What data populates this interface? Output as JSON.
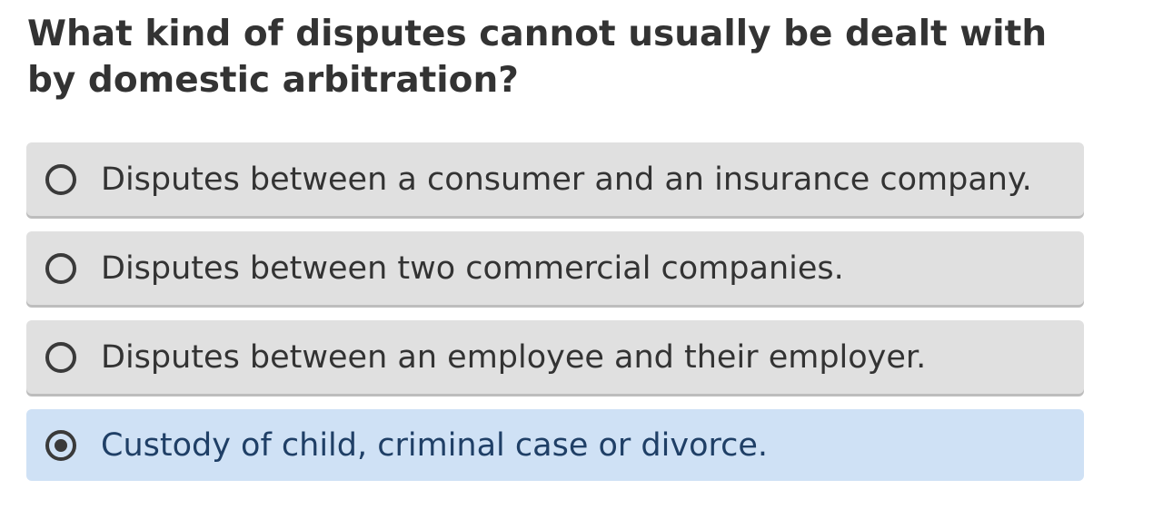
{
  "question": {
    "text": "What kind of disputes cannot usually be dealt with by domestic arbitration?"
  },
  "options": [
    {
      "label": "Disputes between a consumer and an insurance company.",
      "selected": false,
      "icon": "radio-unselected-icon"
    },
    {
      "label": "Disputes between two commercial companies.",
      "selected": false,
      "icon": "radio-unselected-icon"
    },
    {
      "label": "Disputes between an employee and their employer.",
      "selected": false,
      "icon": "radio-unselected-icon"
    },
    {
      "label": "Custody of child, criminal case or divorce.",
      "selected": true,
      "icon": "radio-selected-icon"
    }
  ],
  "colors": {
    "option_background": "#e0e0e0",
    "selected_background": "#cfe1f5",
    "selected_text": "#1f3f66",
    "text": "#333333"
  }
}
